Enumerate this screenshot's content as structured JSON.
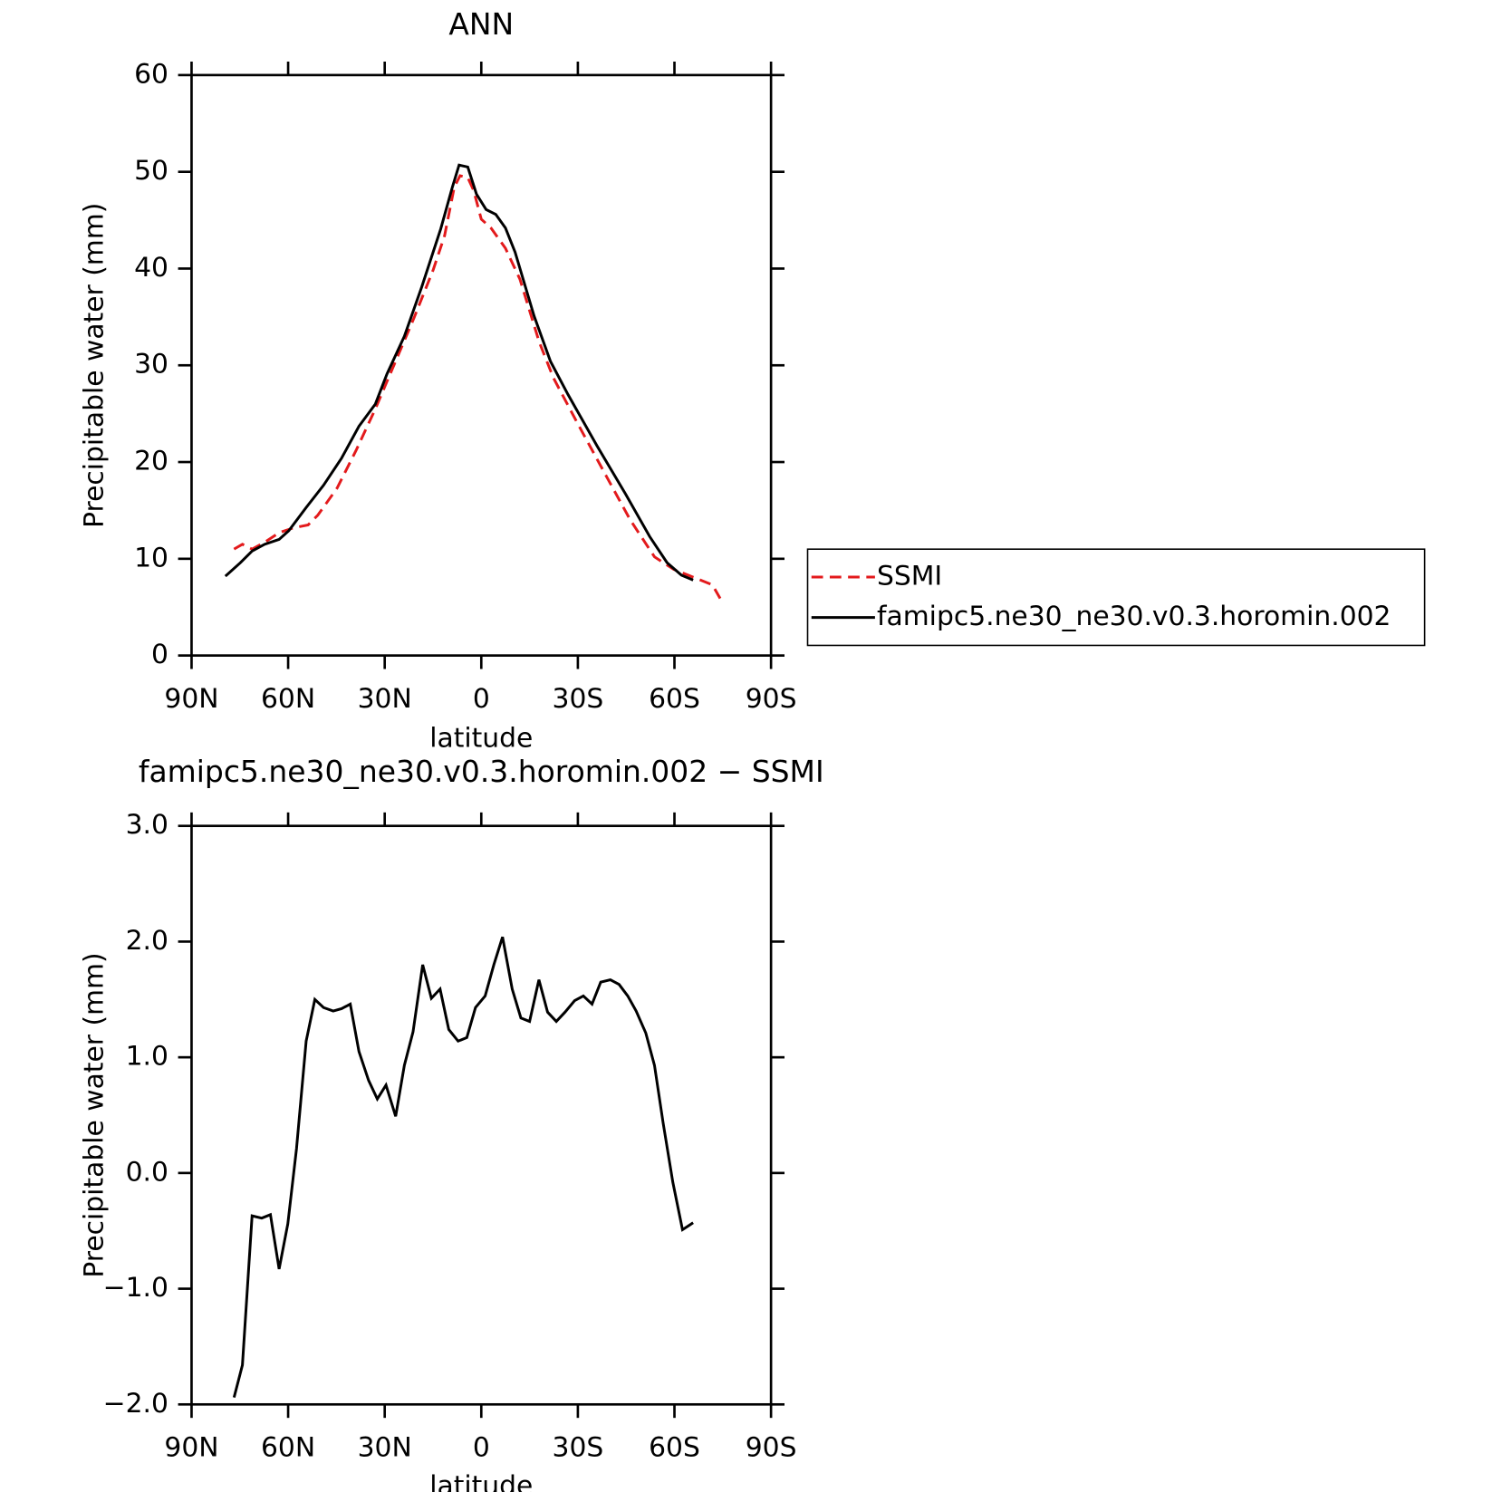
{
  "chart_data": [
    {
      "type": "line",
      "title": "ANN",
      "xlabel": "latitude",
      "ylabel": "Precipitable water (mm)",
      "xlim": [
        90,
        -90
      ],
      "ylim": [
        0,
        60
      ],
      "xticks": [
        {
          "value": 90,
          "label": "90N"
        },
        {
          "value": 60,
          "label": "60N"
        },
        {
          "value": 30,
          "label": "30N"
        },
        0,
        {
          "value": -30,
          "label": "30S"
        },
        {
          "value": -60,
          "label": "60S"
        },
        {
          "value": -90,
          "label": "90S"
        }
      ],
      "yticks": [
        0,
        10,
        20,
        30,
        40,
        50,
        60
      ],
      "legend": "right",
      "series": [
        {
          "name": "SSMI",
          "color": "#e31a1c",
          "style": "dashed",
          "x": [
            76.8,
            74.2,
            71.2,
            67.3,
            62.8,
            58.3,
            53.8,
            50.8,
            44.8,
            38.9,
            32.9,
            26.9,
            20.9,
            14.9,
            11.4,
            8.4,
            6.6,
            4.2,
            2.4,
            0,
            -3,
            -7.5,
            -12,
            -18,
            -22.4,
            -29.9,
            -38.9,
            -46.3,
            -53.8,
            -59.8,
            -65.8,
            -71.8,
            -74.2
          ],
          "values": [
            11,
            11.5,
            11,
            11.7,
            12.7,
            13.2,
            13.5,
            14.5,
            17.3,
            21.2,
            25.5,
            30.2,
            34.9,
            39.9,
            43.4,
            48.4,
            49.6,
            49.4,
            48.1,
            45.1,
            44.2,
            42.1,
            38.9,
            32.4,
            28.7,
            24,
            18.5,
            14,
            10.2,
            8.9,
            8.1,
            7.3,
            5.9
          ]
        },
        {
          "name": "famipc5.ne30_ne30.v0.3.horomin.002",
          "color": "#000000",
          "style": "solid",
          "x": [
            79.5,
            74.8,
            71.2,
            67.3,
            62.8,
            59.8,
            54.4,
            49,
            43.4,
            38,
            32.9,
            29.3,
            23.9,
            18.5,
            12.6,
            9,
            6.9,
            4.2,
            1.5,
            -1.5,
            -4.5,
            -7.5,
            -10.5,
            -16.4,
            -21.5,
            -26.9,
            -35.9,
            -44.8,
            -52.3,
            -57.7,
            -62.2,
            -65.8
          ],
          "values": [
            8.2,
            9.6,
            10.8,
            11.5,
            12,
            12.9,
            15.3,
            17.6,
            20.4,
            23.7,
            26,
            29.1,
            33,
            38.1,
            44.1,
            48.4,
            50.7,
            50.5,
            47.7,
            46.1,
            45.6,
            44.2,
            41.7,
            35.1,
            30.4,
            27,
            21.7,
            16.7,
            12.3,
            9.6,
            8.3,
            7.8
          ]
        }
      ]
    },
    {
      "type": "line",
      "title": "famipc5.ne30_ne30.v0.3.horomin.002 − SSMI",
      "xlabel": "latitude",
      "ylabel": "Precipitable water (mm)",
      "xlim": [
        90,
        -90
      ],
      "ylim": [
        -2,
        3
      ],
      "xticks": [
        {
          "value": 90,
          "label": "90N"
        },
        {
          "value": 60,
          "label": "60N"
        },
        {
          "value": 30,
          "label": "30N"
        },
        0,
        {
          "value": -30,
          "label": "30S"
        },
        {
          "value": -60,
          "label": "60S"
        },
        {
          "value": -90,
          "label": "90S"
        }
      ],
      "yticks": [
        {
          "value": -2,
          "label": "−2.0"
        },
        {
          "value": -1,
          "label": "−1.0"
        },
        {
          "value": 0,
          "label": "0.0"
        },
        {
          "value": 1,
          "label": "1.0"
        },
        {
          "value": 2,
          "label": "2.0"
        },
        {
          "value": 3,
          "label": "3.0"
        }
      ],
      "series": [
        {
          "color": "#000000",
          "style": "solid",
          "x": [
            76.8,
            74.2,
            71.2,
            68.2,
            65.5,
            62.8,
            60.1,
            57.4,
            54.4,
            51.7,
            49,
            46,
            43.4,
            40.7,
            38,
            35,
            32.3,
            29.6,
            26.6,
            23.9,
            21.2,
            18.2,
            15.5,
            12.8,
            10.1,
            7.2,
            4.5,
            1.8,
            -1.2,
            -3.9,
            -6.6,
            -9.6,
            -12.3,
            -15,
            -17.9,
            -20.6,
            -23.3,
            -26,
            -29,
            -31.7,
            -34.4,
            -37.1,
            -40.1,
            -42.8,
            -45.5,
            -48.1,
            -51.1,
            -53.8,
            -56.5,
            -59.5,
            -62.5,
            -65.8
          ],
          "values": [
            -1.94,
            -1.66,
            -0.37,
            -0.39,
            -0.36,
            -0.83,
            -0.44,
            0.21,
            1.14,
            1.5,
            1.43,
            1.4,
            1.42,
            1.46,
            1.05,
            0.8,
            0.64,
            0.76,
            0.49,
            0.93,
            1.22,
            1.8,
            1.51,
            1.59,
            1.24,
            1.14,
            1.17,
            1.43,
            1.53,
            1.8,
            2.04,
            1.59,
            1.34,
            1.31,
            1.67,
            1.39,
            1.31,
            1.39,
            1.49,
            1.53,
            1.46,
            1.65,
            1.67,
            1.63,
            1.53,
            1.4,
            1.21,
            0.93,
            0.43,
            -0.08,
            -0.49,
            -0.43
          ]
        }
      ]
    }
  ]
}
